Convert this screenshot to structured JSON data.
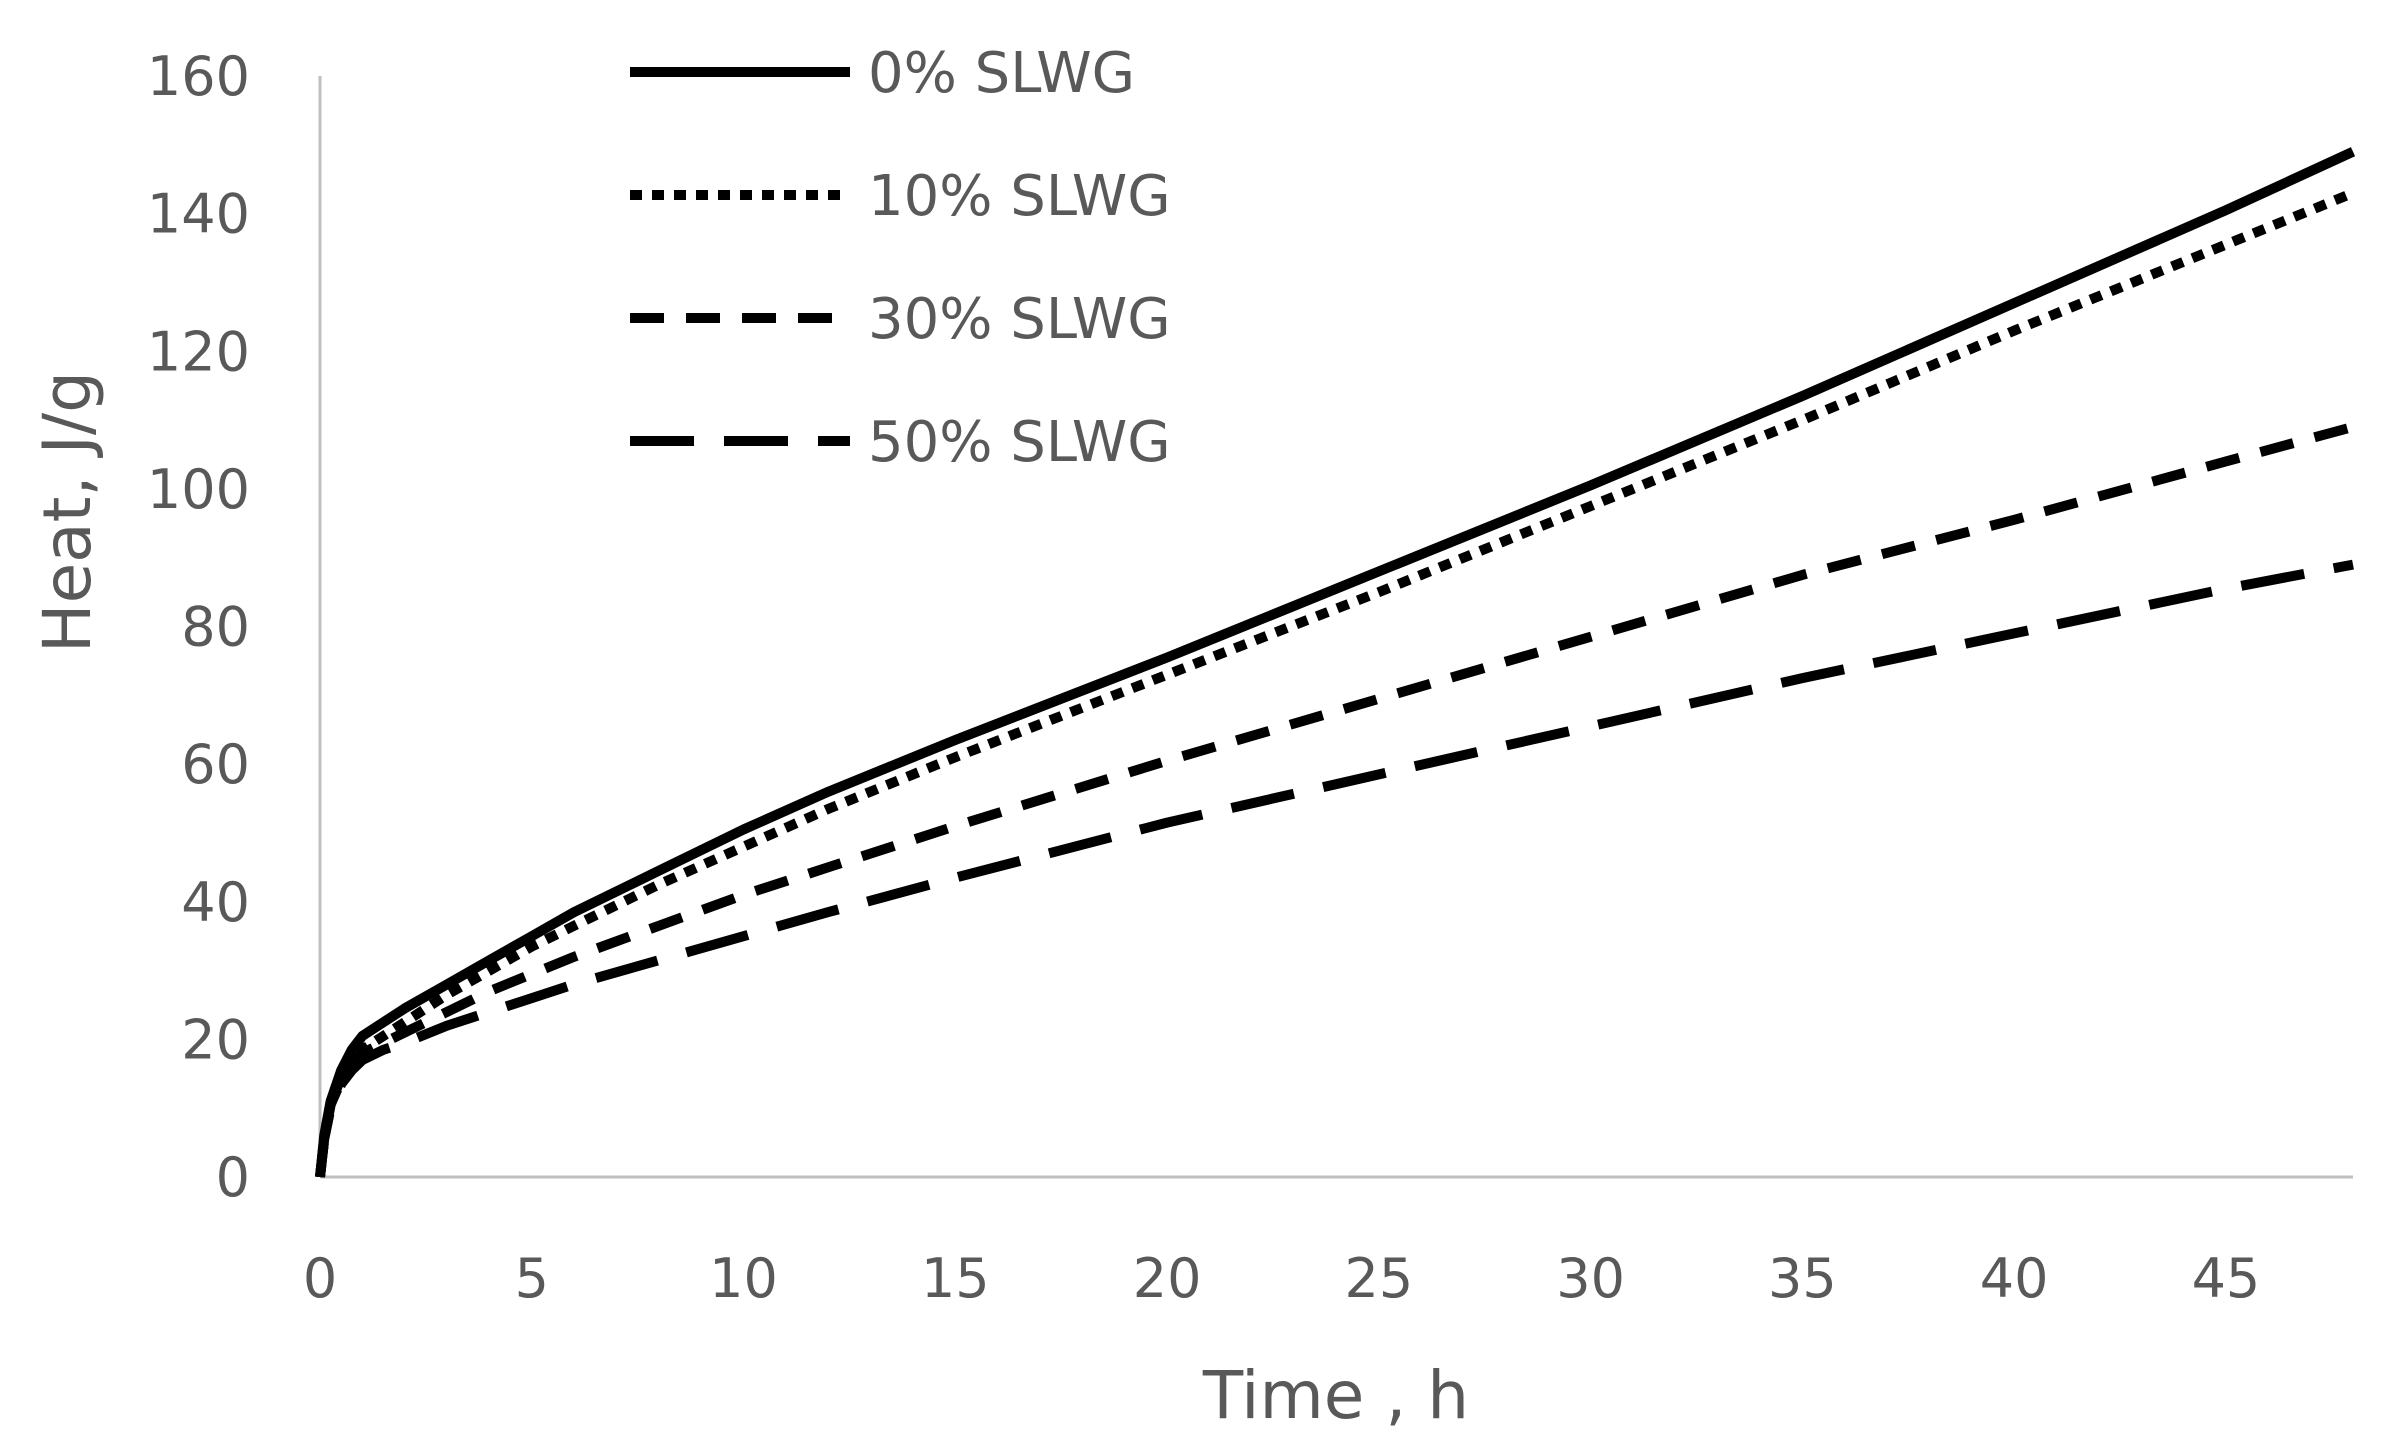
{
  "chart_data": {
    "type": "line",
    "title": "",
    "xlabel": "Time , h",
    "ylabel": "Heat, J/g",
    "xlim": [
      0,
      48
    ],
    "ylim": [
      0,
      160
    ],
    "xticks": [
      0,
      5,
      10,
      15,
      20,
      25,
      30,
      35,
      40,
      45
    ],
    "yticks": [
      0,
      20,
      40,
      60,
      80,
      100,
      120,
      140,
      160
    ],
    "xtick_labels": [
      "0",
      "5",
      "10",
      "15",
      "20",
      "25",
      "30",
      "35",
      "40",
      "45"
    ],
    "ytick_labels": [
      "0",
      "20",
      "40",
      "60",
      "80",
      "100",
      "120",
      "140",
      "160"
    ],
    "grid": false,
    "legend_position": "top-left",
    "series": [
      {
        "name": "0% SLWG",
        "style": "solid",
        "x": [
          0,
          0.1,
          0.25,
          0.5,
          0.75,
          1,
          1.5,
          2,
          3,
          4,
          5,
          6,
          8,
          10,
          12,
          15,
          20,
          25,
          30,
          35,
          40,
          45,
          48
        ],
        "y": [
          0,
          6,
          11,
          15.5,
          18.5,
          20.5,
          22.5,
          24.5,
          28,
          31.5,
          35,
          38.5,
          44.5,
          50.5,
          56,
          63.5,
          75.5,
          88,
          100.5,
          113.5,
          127,
          140.5,
          149
        ]
      },
      {
        "name": "10% SLWG",
        "style": "dotted",
        "x": [
          0,
          0.1,
          0.25,
          0.5,
          0.75,
          1,
          1.5,
          2,
          3,
          4,
          5,
          6,
          8,
          10,
          12,
          15,
          20,
          25,
          30,
          35,
          40,
          45,
          48
        ],
        "y": [
          0,
          5.5,
          10.5,
          14.5,
          17,
          18.5,
          20.5,
          22.5,
          26.5,
          30,
          33.5,
          36.5,
          42.5,
          48,
          53.5,
          61,
          73,
          85,
          97.5,
          110,
          123,
          135.5,
          143
        ]
      },
      {
        "name": "30% SLWG",
        "style": "dashed",
        "x": [
          0,
          0.1,
          0.25,
          0.5,
          0.75,
          1,
          1.5,
          2,
          3,
          4,
          5,
          6,
          8,
          10,
          12,
          15,
          20,
          25,
          30,
          35,
          40,
          45,
          48
        ],
        "y": [
          0,
          5.5,
          10.5,
          14,
          16.5,
          18,
          19.5,
          21,
          24,
          27,
          29.5,
          32,
          36.5,
          41,
          45,
          51,
          60.5,
          69.5,
          78.5,
          87.5,
          95.5,
          104,
          109
        ]
      },
      {
        "name": "50% SLWG",
        "style": "long-dashed",
        "x": [
          0,
          0.1,
          0.25,
          0.5,
          0.75,
          1,
          1.5,
          2,
          3,
          4,
          5,
          6,
          8,
          10,
          12,
          15,
          20,
          25,
          30,
          35,
          40,
          45,
          48
        ],
        "y": [
          0,
          5.5,
          10,
          13.5,
          15.5,
          17,
          18.5,
          19.5,
          22,
          24,
          26,
          28,
          31.5,
          35,
          38.5,
          43.5,
          51.5,
          58.5,
          65.5,
          72.5,
          79,
          85.5,
          89
        ]
      }
    ]
  }
}
